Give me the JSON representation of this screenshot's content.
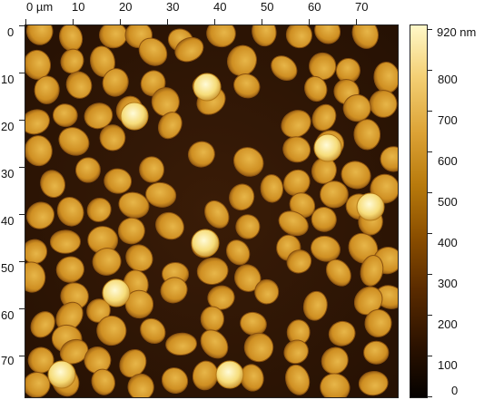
{
  "image": {
    "x_axis": {
      "ticks": [
        "0 µm",
        "10",
        "20",
        "30",
        "40",
        "50",
        "60",
        "70"
      ]
    },
    "y_axis": {
      "ticks": [
        "0",
        "10",
        "20",
        "30",
        "40",
        "50",
        "60",
        "70"
      ]
    },
    "colorbar": {
      "labels": [
        "920 nm",
        "800",
        "700",
        "600",
        "500",
        "400",
        "300",
        "200",
        "100",
        "0"
      ],
      "stops": [
        "#050200",
        "#2c1200",
        "#5a2b00",
        "#8a4e00",
        "#b87a0c",
        "#dca235",
        "#f3cf73",
        "#fff8c8"
      ]
    },
    "colors": {
      "background": "#2e1505",
      "cell_fill": "#d79a2c",
      "cell_edge": "#8a5210",
      "bright_cell": "#f7e07e"
    }
  }
}
